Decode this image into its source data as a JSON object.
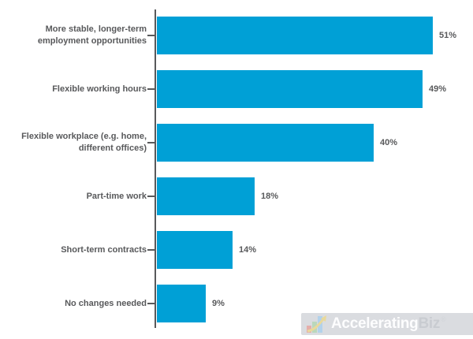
{
  "chart_data": {
    "type": "bar",
    "orientation": "horizontal",
    "title": "",
    "categories": [
      "More stable, longer-term\nemployment opportunities",
      "Flexible working hours",
      "Flexible workplace (e.g. home,\ndifferent offices)",
      "Part-time work",
      "Short-term contracts",
      "No changes needed"
    ],
    "values": [
      51,
      49,
      40,
      18,
      14,
      9
    ],
    "value_labels": [
      "51%",
      "49%",
      "40%",
      "18%",
      "14%",
      "9%"
    ],
    "xlim": [
      0,
      58
    ],
    "grid": false,
    "legend": "none",
    "bar_color": "#00a0d6",
    "axis_color": "#58595b",
    "text_color": "#58595b"
  },
  "watermark": {
    "brand_first": "Accelerating",
    "brand_second": "Biz",
    "registered": "®",
    "panel_color": "#dadce0",
    "icon": "growth-bar-chart-arrow-icon",
    "icon_colors": {
      "red_bar": "#e5aeaa",
      "green_bar": "#bad7bc",
      "blue_bar": "#b2d2eb",
      "arrow": "#e9d99b"
    }
  }
}
